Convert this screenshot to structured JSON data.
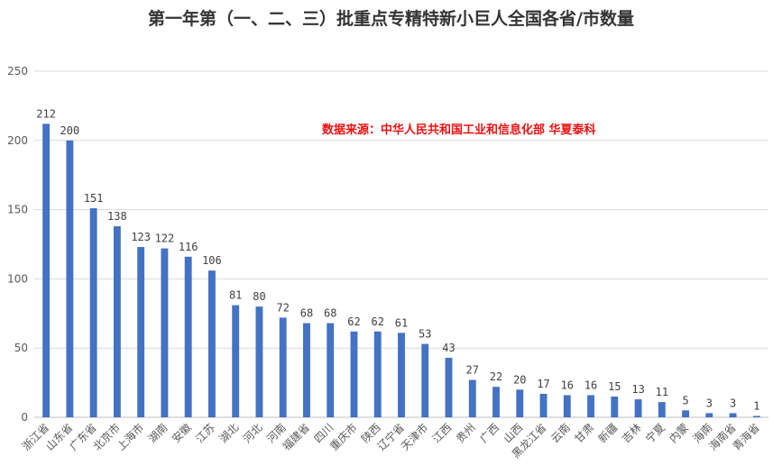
{
  "chart_data": {
    "type": "bar",
    "title": "第一年第（一、二、三）批重点专精特新小巨人全国各省/市数量",
    "source_note": "数据来源：中华人民共和国工业和信息化部 华夏泰科",
    "xlabel": "",
    "ylabel": "",
    "ylim": [
      0,
      250
    ],
    "yticks": [
      0,
      50,
      100,
      150,
      200,
      250
    ],
    "grid": true,
    "legend": "none",
    "bar_color": "#4472c4",
    "categories": [
      "浙江省",
      "山东省",
      "广东省",
      "北京市",
      "上海市",
      "湖南",
      "安徽",
      "江苏",
      "湖北",
      "河北",
      "河南",
      "福建省",
      "四川",
      "重庆市",
      "陕西",
      "辽宁省",
      "天津市",
      "江西",
      "贵州",
      "广西",
      "山西",
      "黑龙江省",
      "云南",
      "甘肃",
      "新疆",
      "吉林",
      "宁夏",
      "内蒙",
      "海南",
      "海南省",
      "青海省"
    ],
    "values": [
      212,
      200,
      151,
      138,
      123,
      122,
      116,
      106,
      81,
      80,
      72,
      68,
      68,
      62,
      62,
      61,
      53,
      43,
      27,
      22,
      20,
      17,
      16,
      16,
      15,
      13,
      11,
      5,
      3,
      3,
      1
    ]
  }
}
